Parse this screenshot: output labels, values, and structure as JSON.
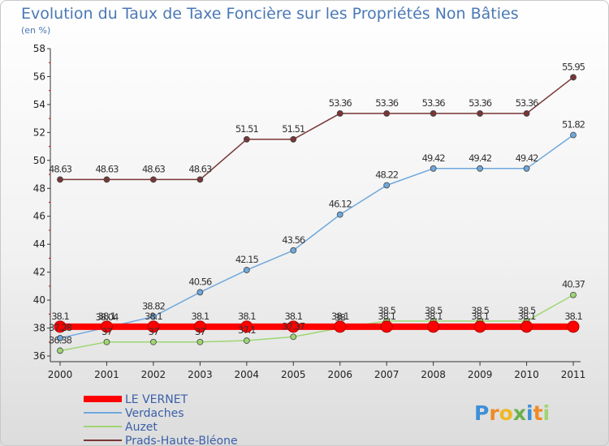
{
  "chart_data": {
    "type": "line",
    "title": "Evolution du Taux de Taxe Foncière sur les Propriétés Non Bâties",
    "subtitle": "(en %)",
    "x": [
      "2000",
      "2001",
      "2002",
      "2003",
      "2004",
      "2005",
      "2006",
      "2007",
      "2008",
      "2009",
      "2010",
      "2011"
    ],
    "yticks": [
      "36",
      "38",
      "40",
      "42",
      "44",
      "46",
      "48",
      "50",
      "52",
      "54",
      "56",
      "58"
    ],
    "ylim": [
      36,
      58
    ],
    "grid": false,
    "legend_position": "bottom-left",
    "series": [
      {
        "name": "LE VERNET",
        "color": "#ff0000",
        "values": [
          38.1,
          38.1,
          38.1,
          38.1,
          38.1,
          38.1,
          38.1,
          38.1,
          38.1,
          38.1,
          38.1,
          38.1
        ],
        "labels": [
          "38.1",
          "38.1",
          "38.1",
          "38.1",
          "38.1",
          "38.1",
          "38.1",
          "38.1",
          "38.1",
          "38.1",
          "38.1",
          "38.1"
        ]
      },
      {
        "name": "Verdaches",
        "color": "#6fa8dc",
        "values": [
          37.28,
          38.04,
          38.82,
          40.56,
          42.15,
          43.56,
          46.12,
          48.22,
          49.42,
          49.42,
          49.42,
          51.82
        ],
        "labels": [
          "37.28",
          "38.04",
          "38.82",
          "40.56",
          "42.15",
          "43.56",
          "46.12",
          "48.22",
          "49.42",
          "49.42",
          "49.42",
          "51.82"
        ]
      },
      {
        "name": "Auzet",
        "color": "#9ed672",
        "values": [
          36.38,
          37,
          37,
          37,
          37.1,
          37.37,
          38,
          38.5,
          38.5,
          38.5,
          38.5,
          40.37
        ],
        "labels": [
          "36.38",
          "37",
          "37",
          "37",
          "37.1",
          "37.37",
          "38",
          "38.5",
          "38.5",
          "38.5",
          "38.5",
          "40.37"
        ]
      },
      {
        "name": "Prads-Haute-Bléone",
        "color": "#7a3636",
        "values": [
          48.63,
          48.63,
          48.63,
          48.63,
          51.51,
          51.51,
          53.36,
          53.36,
          53.36,
          53.36,
          53.36,
          55.95
        ],
        "labels": [
          "48.63",
          "48.63",
          "48.63",
          "48.63",
          "51.51",
          "51.51",
          "53.36",
          "53.36",
          "53.36",
          "53.36",
          "53.36",
          "55.95"
        ]
      }
    ]
  },
  "logo": {
    "text": "Proxiti"
  }
}
